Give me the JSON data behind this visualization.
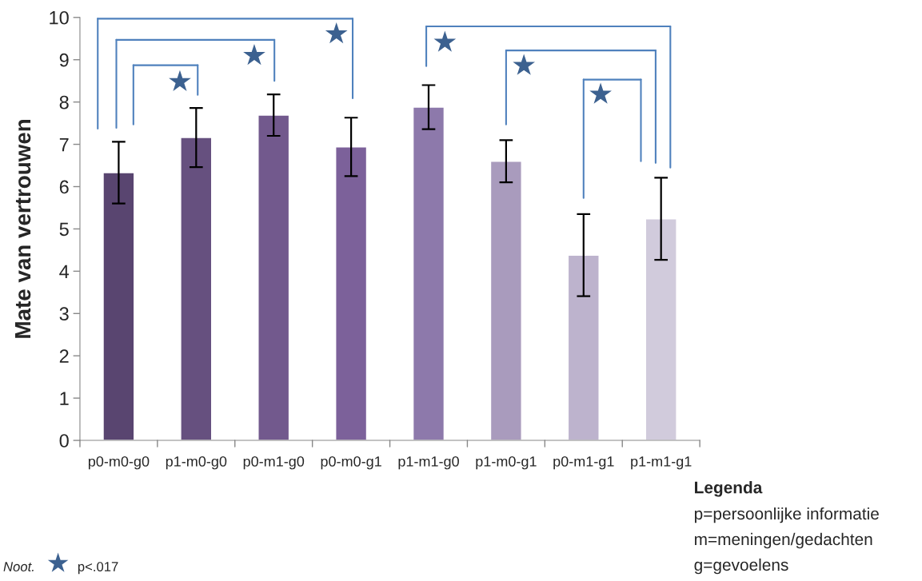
{
  "chart_data": {
    "type": "bar",
    "ylabel": "Mate van vertrouwen",
    "categories": [
      "p0-m0-g0",
      "p1-m0-g0",
      "p0-m1-g0",
      "p0-m0-g1",
      "p1-m1-g0",
      "p1-m0-g1",
      "p0-m1-g1",
      "p1-m1-g1"
    ],
    "values": [
      6.33,
      7.16,
      7.69,
      6.94,
      7.88,
      6.6,
      4.38,
      5.24
    ],
    "errors": [
      0.73,
      0.7,
      0.49,
      0.69,
      0.52,
      0.5,
      0.97,
      0.97
    ],
    "colors": [
      "#594570",
      "#66507f",
      "#72598d",
      "#7c619a",
      "#8d79ab",
      "#a99bbd",
      "#bdb3cd",
      "#d1cbdc"
    ],
    "ylim": [
      0,
      10
    ],
    "yticks": [
      0,
      1,
      2,
      3,
      4,
      5,
      6,
      7,
      8,
      9,
      10
    ],
    "grid": false,
    "legend": false,
    "annotations": [
      "★",
      "★",
      "★",
      "★",
      "★",
      "★",
      "Noot.",
      "★",
      "p<.017",
      "Legenda",
      "p=persoonlijke informatie",
      "m=meningen/gedachten",
      "g=gevoelens"
    ]
  }
}
